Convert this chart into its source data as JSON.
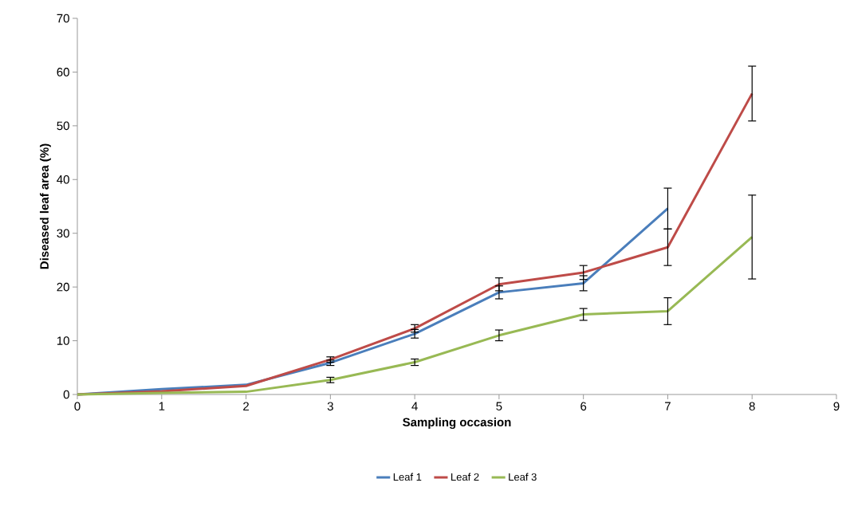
{
  "chart_data": {
    "type": "line",
    "xlabel": "Sampling occasion",
    "ylabel": "Diseased leaf area (%)",
    "x": [
      0,
      1,
      2,
      3,
      4,
      5,
      6,
      7,
      8
    ],
    "xlim": [
      0,
      9
    ],
    "xticks": [
      0,
      1,
      2,
      3,
      4,
      5,
      6,
      7,
      8,
      9
    ],
    "ylim": [
      0,
      70
    ],
    "yticks": [
      0,
      10,
      20,
      30,
      40,
      50,
      60,
      70
    ],
    "grid": false,
    "legend": "bottom",
    "marker": "none",
    "line_style": "solid",
    "series": [
      {
        "name": "Leaf 1",
        "color": "#4a7ebb",
        "x": [
          0,
          1,
          2,
          3,
          4,
          5,
          6,
          7
        ],
        "values": [
          0,
          1.0,
          1.8,
          5.9,
          11.3,
          19.0,
          20.7,
          34.6
        ],
        "errors": [
          null,
          null,
          null,
          0.5,
          0.8,
          1.2,
          1.4,
          3.8
        ]
      },
      {
        "name": "Leaf 2",
        "color": "#be4b48",
        "values": [
          0,
          0.6,
          1.6,
          6.5,
          12.3,
          20.5,
          22.7,
          27.4,
          56.0
        ],
        "errors": [
          null,
          null,
          null,
          0.5,
          0.7,
          1.2,
          1.3,
          3.4,
          5.1
        ]
      },
      {
        "name": "Leaf 3",
        "color": "#98b954",
        "values": [
          0,
          0.3,
          0.5,
          2.7,
          6.0,
          11.0,
          14.9,
          15.5,
          29.3
        ],
        "errors": [
          null,
          null,
          null,
          0.5,
          0.6,
          1.0,
          1.1,
          2.5,
          7.8
        ]
      }
    ]
  }
}
